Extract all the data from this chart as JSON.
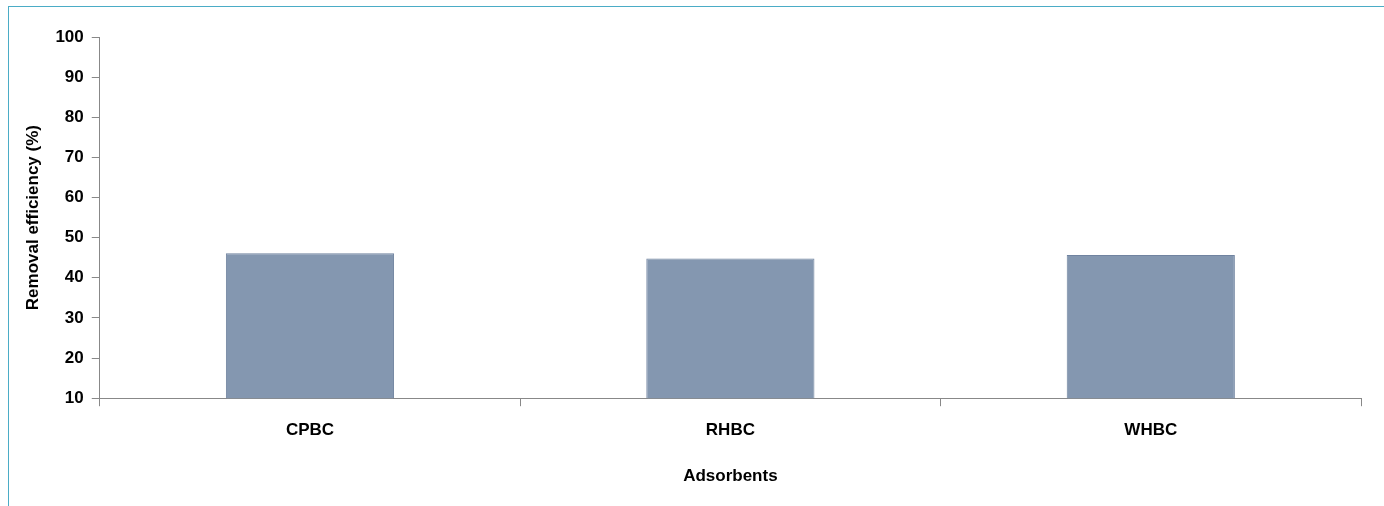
{
  "chart_data": {
    "type": "bar",
    "xlabel": "Adsorbents",
    "ylabel": "Removal efficiency (%)",
    "categories": [
      "CPBC",
      "RHBC",
      "WHBC"
    ],
    "values": [
      46.1,
      44.8,
      45.7
    ],
    "color": "#8497b0",
    "ylim": [
      10,
      100
    ],
    "yticks": [
      10,
      20,
      30,
      40,
      50,
      60,
      70,
      80,
      90,
      100
    ],
    "grid": false,
    "legend": false
  }
}
